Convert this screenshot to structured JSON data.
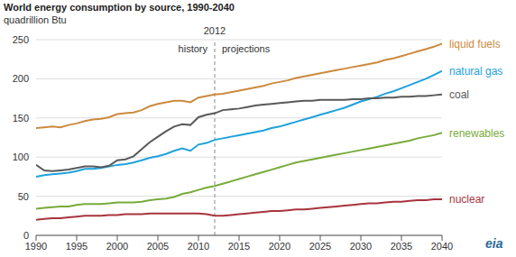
{
  "chart_data": {
    "type": "line",
    "title": "World energy consumption by source, 1990-2040",
    "subtitle": "quadrillion Btu",
    "source": "eia",
    "x": [
      1990,
      1991,
      1992,
      1993,
      1994,
      1995,
      1996,
      1997,
      1998,
      1999,
      2000,
      2001,
      2002,
      2003,
      2004,
      2005,
      2006,
      2007,
      2008,
      2009,
      2010,
      2011,
      2012,
      2013,
      2014,
      2015,
      2016,
      2017,
      2018,
      2019,
      2020,
      2021,
      2022,
      2023,
      2024,
      2025,
      2026,
      2027,
      2028,
      2029,
      2030,
      2031,
      2032,
      2033,
      2034,
      2035,
      2036,
      2037,
      2038,
      2039,
      2040
    ],
    "xlim": [
      1990,
      2040
    ],
    "xticks": [
      1990,
      1995,
      2000,
      2005,
      2010,
      2015,
      2020,
      2025,
      2030,
      2035,
      2040
    ],
    "ylim": [
      0,
      250
    ],
    "yticks": [
      0,
      50,
      100,
      150,
      200,
      250
    ],
    "grid": true,
    "divider": {
      "x": 2012,
      "left": "history",
      "right": "projections"
    },
    "series": [
      {
        "name": "liquid fuels",
        "color": "#cc8a3e",
        "values": [
          137,
          138,
          139,
          138,
          141,
          143,
          146,
          148,
          149,
          151,
          155,
          156,
          157,
          160,
          165,
          168,
          170,
          172,
          172,
          170,
          176,
          178,
          180,
          181,
          183,
          185,
          187,
          189,
          191,
          194,
          196,
          198,
          201,
          203,
          205,
          207,
          209,
          211,
          213,
          215,
          217,
          219,
          221,
          224,
          226,
          229,
          232,
          235,
          238,
          241,
          245
        ]
      },
      {
        "name": "natural gas",
        "color": "#1ea2dc",
        "values": [
          75,
          77,
          78,
          79,
          80,
          82,
          85,
          85,
          86,
          88,
          90,
          91,
          93,
          96,
          99,
          101,
          104,
          108,
          111,
          108,
          116,
          118,
          122,
          124,
          126,
          128,
          130,
          132,
          134,
          137,
          139,
          142,
          145,
          148,
          151,
          154,
          157,
          160,
          163,
          167,
          171,
          174,
          177,
          181,
          184,
          188,
          192,
          196,
          200,
          205,
          210
        ]
      },
      {
        "name": "coal",
        "color": "#58595b",
        "values": [
          90,
          83,
          82,
          83,
          84,
          86,
          88,
          88,
          87,
          89,
          96,
          97,
          101,
          110,
          119,
          126,
          133,
          139,
          142,
          141,
          151,
          154,
          156,
          160,
          161,
          162,
          164,
          166,
          167,
          168,
          169,
          170,
          171,
          172,
          172,
          173,
          173,
          173,
          173,
          174,
          174,
          175,
          175,
          176,
          176,
          177,
          177,
          178,
          178,
          179,
          180
        ]
      },
      {
        "name": "renewables",
        "color": "#78ab3a",
        "values": [
          34,
          35,
          36,
          37,
          37,
          39,
          40,
          40,
          40,
          41,
          42,
          42,
          42,
          43,
          45,
          46,
          47,
          49,
          53,
          55,
          58,
          61,
          63,
          66,
          69,
          72,
          75,
          78,
          81,
          84,
          87,
          90,
          93,
          95,
          97,
          99,
          101,
          103,
          105,
          107,
          109,
          111,
          113,
          115,
          117,
          119,
          121,
          124,
          126,
          128,
          131
        ]
      },
      {
        "name": "nuclear",
        "color": "#a8343e",
        "values": [
          20,
          21,
          22,
          22,
          23,
          24,
          25,
          25,
          25,
          26,
          26,
          27,
          27,
          27,
          28,
          28,
          28,
          28,
          28,
          28,
          28,
          27,
          25,
          25,
          26,
          27,
          28,
          29,
          30,
          31,
          31,
          32,
          33,
          33,
          34,
          35,
          36,
          37,
          38,
          39,
          40,
          41,
          41,
          42,
          43,
          43,
          44,
          45,
          45,
          46,
          46
        ]
      }
    ]
  }
}
